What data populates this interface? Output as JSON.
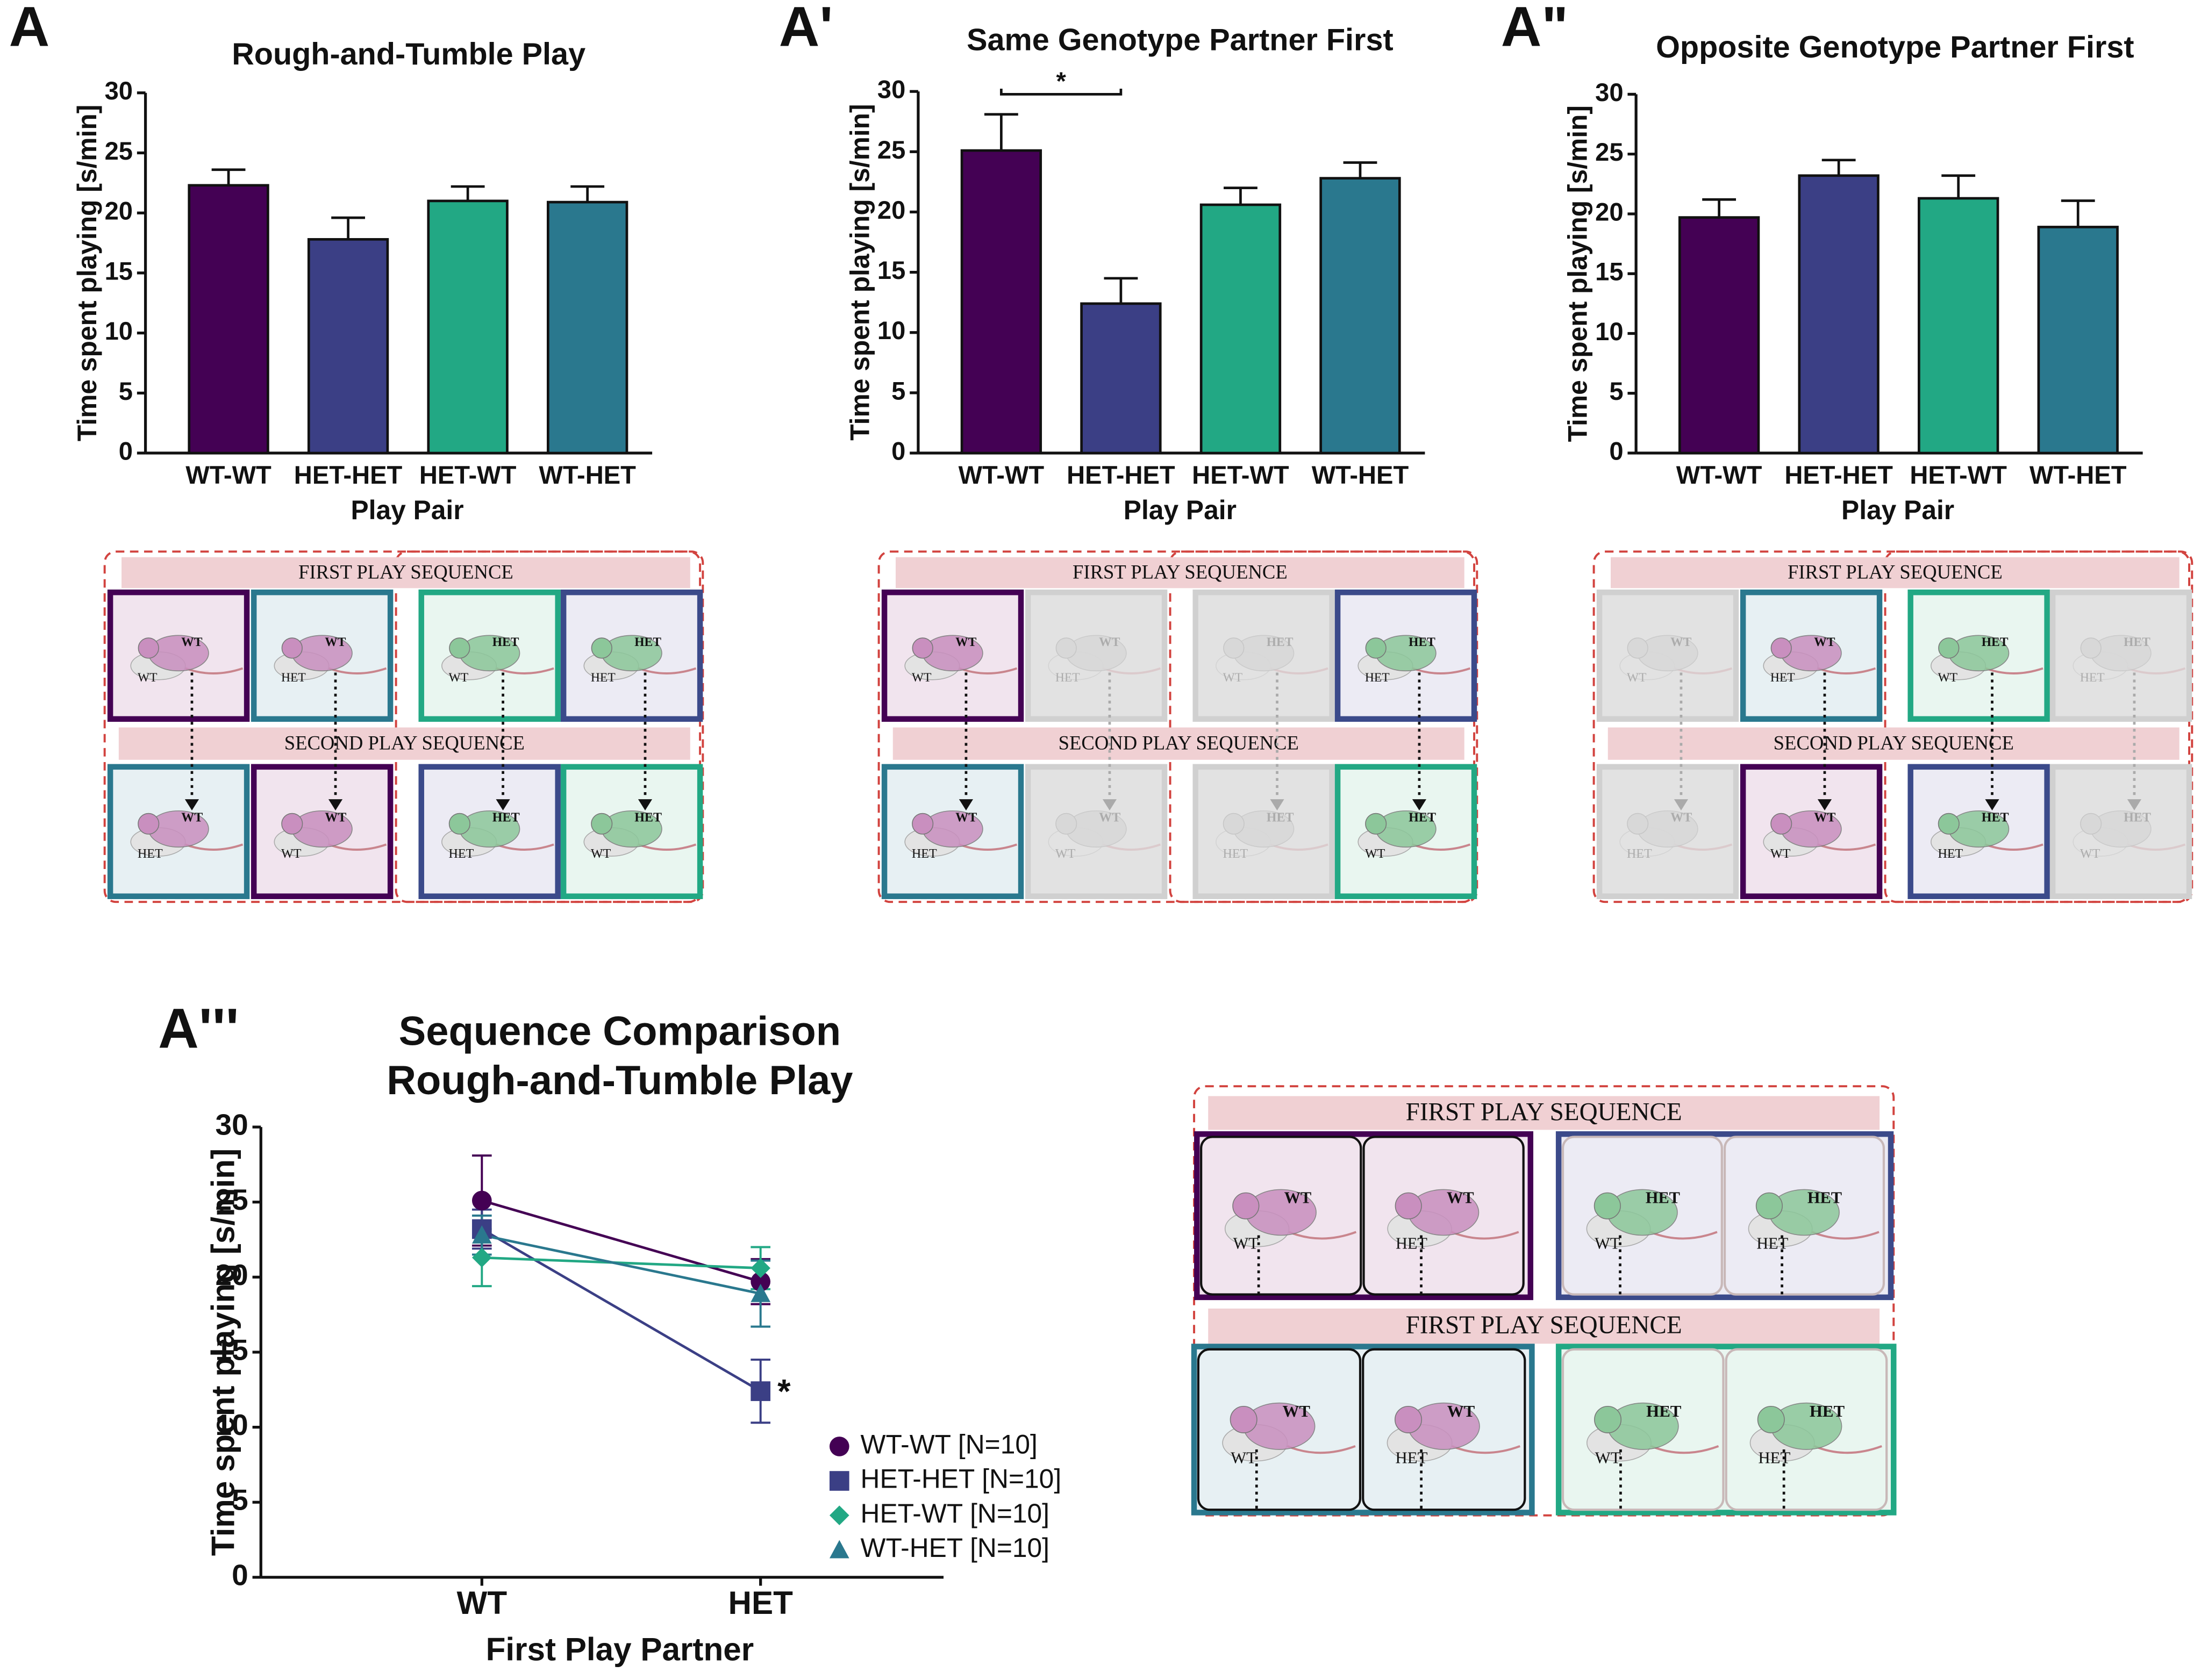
{
  "chart_data": [
    {
      "type": "bar",
      "panel": "A",
      "title": "Rough-and-Tumble Play",
      "ylabel": "Time spent playing [s/min]",
      "xlabel": "Play Pair",
      "categories": [
        "WT-WT",
        "HET-HET",
        "HET-WT",
        "WT-HET"
      ],
      "values": [
        22.3,
        17.8,
        21.0,
        20.9
      ],
      "errors": [
        1.3,
        1.8,
        1.2,
        1.3
      ],
      "colors": [
        "#440154",
        "#3b3f85",
        "#22a884",
        "#2a788e"
      ],
      "ylim": [
        0,
        30
      ],
      "yticks": [
        0,
        5,
        10,
        15,
        20,
        25,
        30
      ]
    },
    {
      "type": "bar",
      "panel": "A'",
      "title": "Same Genotype Partner First",
      "ylabel": "Time spent playing [s/min]",
      "xlabel": "Play Pair",
      "categories": [
        "WT-WT",
        "HET-HET",
        "HET-WT",
        "WT-HET"
      ],
      "values": [
        25.1,
        12.4,
        20.6,
        22.8
      ],
      "errors": [
        3.0,
        2.1,
        1.4,
        1.3
      ],
      "colors": [
        "#440154",
        "#3b3f85",
        "#22a884",
        "#2a788e"
      ],
      "ylim": [
        0,
        30
      ],
      "yticks": [
        0,
        5,
        10,
        15,
        20,
        25,
        30
      ],
      "significance": {
        "label": "*",
        "between": [
          "WT-WT",
          "HET-HET"
        ]
      }
    },
    {
      "type": "bar",
      "panel": "A\"",
      "title": "Opposite Genotype Partner First",
      "ylabel": "Time spent playing [s/min]",
      "xlabel": "Play Pair",
      "categories": [
        "WT-WT",
        "HET-HET",
        "HET-WT",
        "WT-HET"
      ],
      "values": [
        19.7,
        23.2,
        21.3,
        18.9
      ],
      "errors": [
        1.5,
        1.3,
        1.9,
        2.2
      ],
      "colors": [
        "#440154",
        "#3b3f85",
        "#22a884",
        "#2a788e"
      ],
      "ylim": [
        0,
        30
      ],
      "yticks": [
        0,
        5,
        10,
        15,
        20,
        25,
        30
      ]
    },
    {
      "type": "line",
      "panel": "A'''",
      "title": [
        "Sequence Comparison",
        "Rough-and-Tumble Play"
      ],
      "ylabel": "Time spent playing [s/min]",
      "xlabel": "First  Play Partner",
      "categories": [
        "WT",
        "HET"
      ],
      "ylim": [
        0,
        30
      ],
      "yticks": [
        0,
        5,
        10,
        15,
        20,
        25,
        30
      ],
      "series": [
        {
          "name": "WT-WT [N=10]",
          "color": "#440154",
          "marker": "circle",
          "values": [
            25.1,
            19.7
          ],
          "errors": [
            3.0,
            1.5
          ]
        },
        {
          "name": "HET-HET [N=10]",
          "color": "#3b3f85",
          "marker": "square",
          "values": [
            23.2,
            12.4
          ],
          "errors": [
            1.3,
            2.1
          ]
        },
        {
          "name": "HET-WT [N=10]",
          "color": "#22a884",
          "marker": "diamond",
          "values": [
            21.3,
            20.6
          ],
          "errors": [
            1.9,
            1.4
          ]
        },
        {
          "name": "WT-HET [N=10]",
          "color": "#2a788e",
          "marker": "triangle",
          "values": [
            22.8,
            18.9
          ],
          "errors": [
            1.3,
            2.2
          ]
        }
      ],
      "annotation": {
        "text": "*",
        "series": "HET-HET [N=10]",
        "category": "HET"
      }
    }
  ],
  "diagrams": [
    {
      "banners": [
        "FIRST PLAY SEQUENCE",
        "SECOND PLAY SEQUENCE"
      ],
      "rows": [
        [
          {
            "top": "WT",
            "bottom": "WT"
          },
          {
            "top": "WT",
            "bottom": "HET"
          },
          {
            "top": "HET",
            "bottom": "WT"
          },
          {
            "top": "HET",
            "bottom": "HET"
          }
        ],
        [
          {
            "top": "WT",
            "bottom": "HET"
          },
          {
            "top": "WT",
            "bottom": "WT"
          },
          {
            "top": "HET",
            "bottom": "HET"
          },
          {
            "top": "HET",
            "bottom": "WT"
          }
        ]
      ]
    },
    {
      "banners": [
        "FIRST PLAY SEQUENCE",
        "SECOND PLAY SEQUENCE"
      ],
      "rows": [
        [
          {
            "top": "WT",
            "bottom": "WT"
          },
          {
            "top": "WT",
            "bottom": "HET"
          },
          {
            "top": "HET",
            "bottom": "WT"
          },
          {
            "top": "HET",
            "bottom": "HET"
          }
        ],
        [
          {
            "top": "WT",
            "bottom": "HET"
          },
          {
            "top": "WT",
            "bottom": "WT"
          },
          {
            "top": "HET",
            "bottom": "HET"
          },
          {
            "top": "HET",
            "bottom": "WT"
          }
        ]
      ]
    },
    {
      "banners": [
        "FIRST PLAY SEQUENCE",
        "SECOND PLAY SEQUENCE"
      ],
      "rows": [
        [
          {
            "top": "WT",
            "bottom": "WT"
          },
          {
            "top": "WT",
            "bottom": "HET"
          },
          {
            "top": "HET",
            "bottom": "WT"
          },
          {
            "top": "HET",
            "bottom": "HET"
          }
        ],
        [
          {
            "top": "WT",
            "bottom": "HET"
          },
          {
            "top": "WT",
            "bottom": "WT"
          },
          {
            "top": "HET",
            "bottom": "HET"
          },
          {
            "top": "HET",
            "bottom": "WT"
          }
        ]
      ]
    },
    {
      "banners": [
        "FIRST PLAY SEQUENCE",
        "FIRST PLAY SEQUENCE"
      ],
      "rows": [
        [
          {
            "top": "WT",
            "bottom": "WT"
          },
          {
            "top": "WT",
            "bottom": "HET"
          },
          {
            "top": "HET",
            "bottom": "WT"
          },
          {
            "top": "HET",
            "bottom": "HET"
          }
        ],
        [
          {
            "top": "WT",
            "bottom": "WT"
          },
          {
            "top": "WT",
            "bottom": "HET"
          },
          {
            "top": "HET",
            "bottom": "WT"
          },
          {
            "top": "HET",
            "bottom": "HET"
          }
        ]
      ]
    }
  ]
}
